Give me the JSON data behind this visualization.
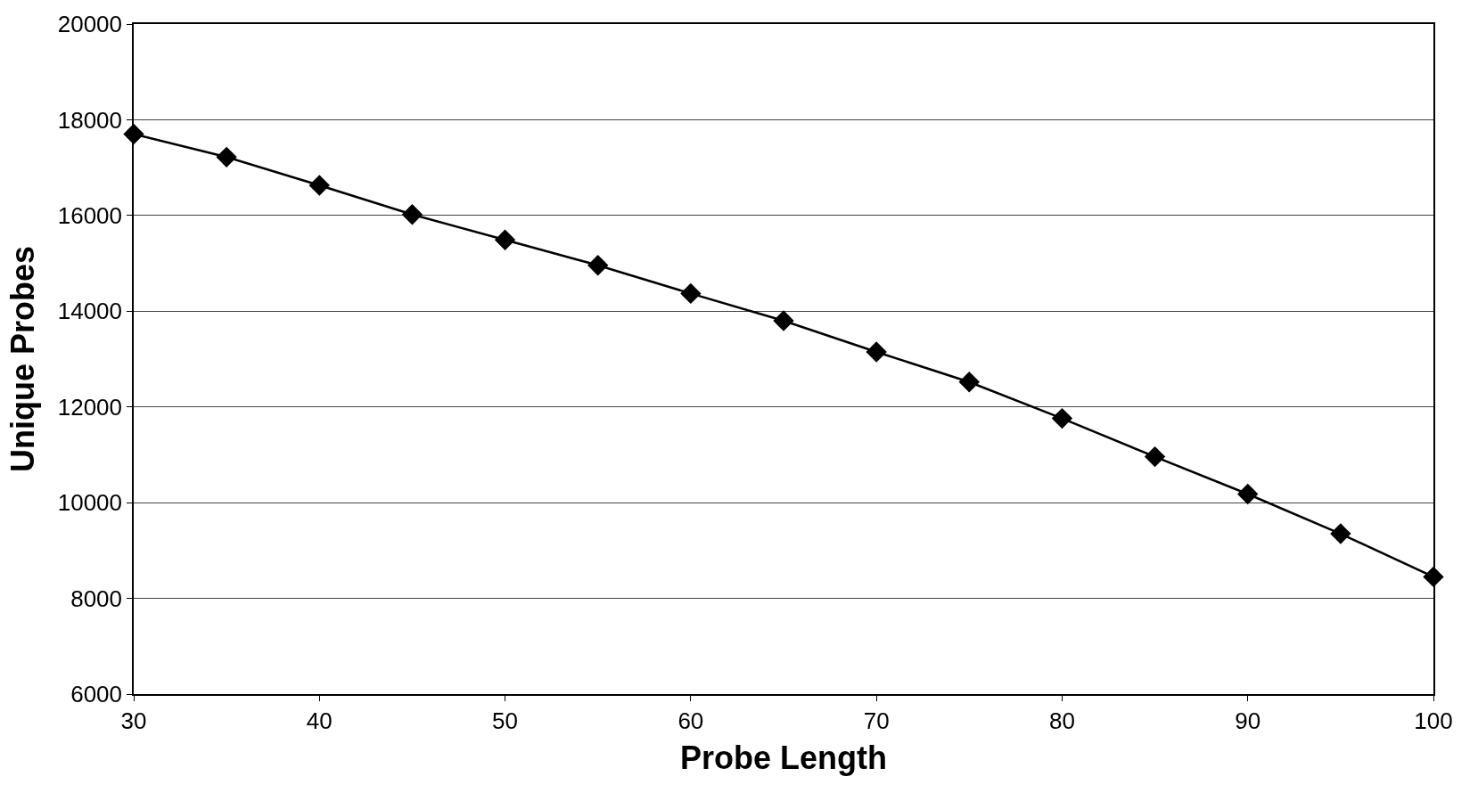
{
  "chart_data": {
    "type": "line",
    "xlabel": "Probe Length",
    "ylabel": "Unique Probes",
    "x": [
      30,
      35,
      40,
      45,
      50,
      55,
      60,
      65,
      70,
      75,
      80,
      85,
      90,
      95,
      100
    ],
    "series": [
      {
        "color": "#000000",
        "values": [
          17700,
          17220,
          16630,
          16020,
          15490,
          14960,
          14370,
          13800,
          13150,
          12520,
          11760,
          10960,
          10180,
          9350,
          8450
        ]
      }
    ],
    "xlim": [
      30,
      100
    ],
    "xticks": [
      30,
      40,
      50,
      60,
      70,
      80,
      90,
      100
    ],
    "ylim": [
      6000,
      20000
    ],
    "yticks": [
      6000,
      8000,
      10000,
      12000,
      14000,
      16000,
      18000,
      20000
    ],
    "grid": "y",
    "marker": "diamond",
    "line_style": "solid"
  }
}
